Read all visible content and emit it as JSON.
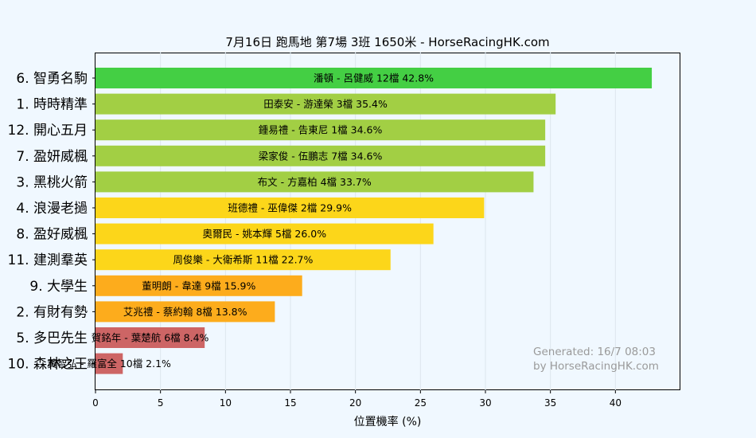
{
  "chart_data": {
    "type": "bar",
    "orientation": "horizontal",
    "title": "7月16日  跑馬地  第7場  3班  1650米 - HorseRacingHK.com",
    "xlabel": "位置機率 (%)",
    "ylabel": "",
    "xlim": [
      0,
      45
    ],
    "xticks": [
      0,
      5,
      10,
      15,
      20,
      25,
      30,
      35,
      40
    ],
    "grid": "vertical",
    "categories": [
      "6. 智勇名駒",
      "1. 時時精準",
      "12. 開心五月",
      "7. 盈妍威楓",
      "3. 黑桃火箭",
      "4. 浪漫老撾",
      "8. 盈好威楓",
      "11. 建測羣英",
      "9. 大學生",
      "2. 有財有勢",
      "5. 多巴先生",
      "10. 森林之王"
    ],
    "values": [
      42.8,
      35.4,
      34.6,
      34.6,
      33.7,
      29.9,
      26.0,
      22.7,
      15.9,
      13.8,
      8.4,
      2.1
    ],
    "bar_labels": [
      "潘頓 - 呂健威 12檔  42.8%",
      "田泰安 - 游達榮 3檔  35.4%",
      "鍾易禮 - 告東尼 1檔  34.6%",
      "梁家俊 - 伍鵬志 7檔  34.6%",
      "布文 - 方嘉柏 4檔  33.7%",
      "班德禮 - 巫偉傑 2檔  29.9%",
      "奧爾民 - 姚本輝 5檔  26.0%",
      "周俊樂 - 大衛希斯 11檔  22.7%",
      "董明朗 - 韋達 9檔  15.9%",
      "艾兆禮 - 蔡約翰 8檔  13.8%",
      "賀銘年 - 葉楚航 6檔  8.4%",
      "黃智弘 - 羅富全 10檔  2.1%"
    ],
    "colors": [
      "#44cf44",
      "#a2cf44",
      "#a2cf44",
      "#a2cf44",
      "#a2cf44",
      "#fcd61a",
      "#fcd61a",
      "#fcd61a",
      "#fdac1c",
      "#fdac1c",
      "#cd6565",
      "#cd6565"
    ],
    "annotation": [
      "Generated: 16/7 08:03",
      "by HorseRacingHK.com"
    ]
  }
}
